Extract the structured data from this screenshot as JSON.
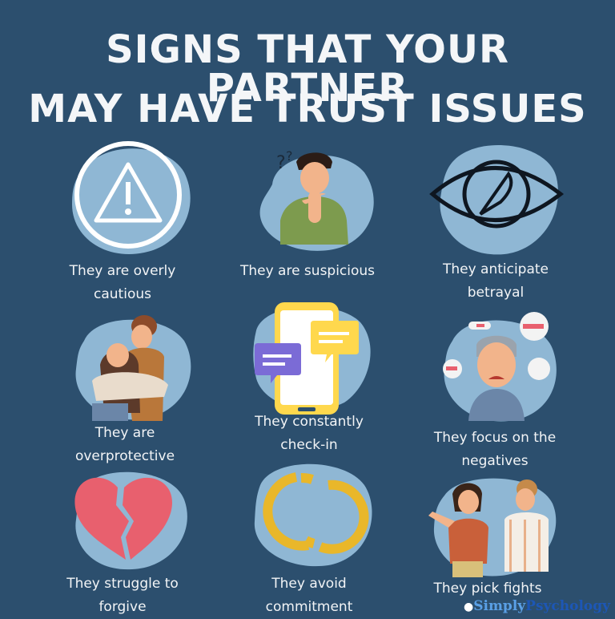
{
  "title": {
    "line1": "SIGNS THAT YOUR PARTNER",
    "line2": "MAY HAVE TRUST ISSUES"
  },
  "items": [
    {
      "icon": "warning-icon",
      "line1": "They are overly",
      "line2": "cautious"
    },
    {
      "icon": "thinking-person-icon",
      "line1": "They are suspicious",
      "line2": ""
    },
    {
      "icon": "eye-with-knife-icon",
      "line1": "They anticipate",
      "line2": "betrayal"
    },
    {
      "icon": "hugging-couple-icon",
      "line1": "They are",
      "line2": "overprotective"
    },
    {
      "icon": "phone-messages-icon",
      "line1": "They constantly",
      "line2": "check-in"
    },
    {
      "icon": "worried-man-icon",
      "line1": "They focus on the",
      "line2": "negatives"
    },
    {
      "icon": "broken-heart-icon",
      "line1": "They struggle to",
      "line2": "forgive"
    },
    {
      "icon": "broken-rings-icon",
      "line1": "They avoid",
      "line2": "commitment"
    },
    {
      "icon": "arguing-couple-icon",
      "line1": "They pick fights",
      "line2": ""
    }
  ],
  "brand": {
    "part1": "Simply",
    "part2": "Psychology"
  },
  "colors": {
    "background": "#2c4f6e",
    "blob": "#8fb7d4",
    "heart": "#e8606e",
    "rings": "#e9b72a",
    "phone": "#ffd84d",
    "bubble": "#7b6bd6"
  }
}
